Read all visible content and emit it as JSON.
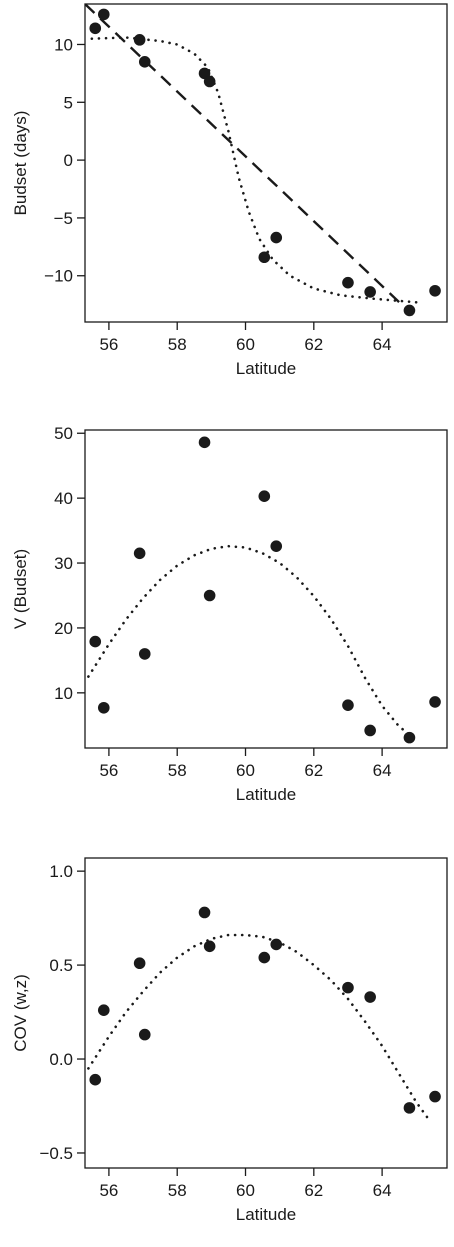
{
  "chart_data": [
    {
      "type": "scatter",
      "xlabel": "Latitude",
      "ylabel": "Budset (days)",
      "xlim": [
        55.3,
        65.9
      ],
      "ylim": [
        -14,
        13.5
      ],
      "xticks": [
        56,
        58,
        60,
        62,
        64
      ],
      "yticks": [
        -10,
        -5,
        0,
        5,
        10
      ],
      "xtick_labels": [
        "56",
        "58",
        "60",
        "62",
        "64"
      ],
      "ytick_labels": [
        "−10",
        "−5",
        "0",
        "5",
        "10"
      ],
      "grid": false,
      "points": [
        {
          "x": 55.6,
          "y": 11.4
        },
        {
          "x": 55.85,
          "y": 12.6
        },
        {
          "x": 56.9,
          "y": 10.4
        },
        {
          "x": 57.05,
          "y": 8.5
        },
        {
          "x": 58.8,
          "y": 7.5
        },
        {
          "x": 58.95,
          "y": 6.8
        },
        {
          "x": 60.55,
          "y": -8.4
        },
        {
          "x": 60.9,
          "y": -6.7
        },
        {
          "x": 63.0,
          "y": -10.6
        },
        {
          "x": 63.65,
          "y": -11.4
        },
        {
          "x": 64.8,
          "y": -13.0
        },
        {
          "x": 65.55,
          "y": -11.3
        }
      ],
      "fits": [
        {
          "style": "dashed",
          "points": [
            [
              55.3,
              13.5
            ],
            [
              64.9,
              -13.4
            ]
          ]
        },
        {
          "style": "dotted",
          "points": [
            [
              55.5,
              10.5
            ],
            [
              56.5,
              10.6
            ],
            [
              57.5,
              10.3
            ],
            [
              58.0,
              10.0
            ],
            [
              58.5,
              9.2
            ],
            [
              58.9,
              8.0
            ],
            [
              59.2,
              5.8
            ],
            [
              59.5,
              2.5
            ],
            [
              59.8,
              -1.5
            ],
            [
              60.1,
              -4.5
            ],
            [
              60.4,
              -6.8
            ],
            [
              60.8,
              -8.6
            ],
            [
              61.3,
              -10.0
            ],
            [
              62.0,
              -11.1
            ],
            [
              62.8,
              -11.7
            ],
            [
              63.8,
              -12.0
            ],
            [
              65.0,
              -12.3
            ]
          ]
        }
      ]
    },
    {
      "type": "scatter",
      "xlabel": "Latitude",
      "ylabel": "V (Budset)",
      "xlim": [
        55.3,
        65.9
      ],
      "ylim": [
        1.5,
        50.5
      ],
      "xticks": [
        56,
        58,
        60,
        62,
        64
      ],
      "yticks": [
        10,
        20,
        30,
        40,
        50
      ],
      "xtick_labels": [
        "56",
        "58",
        "60",
        "62",
        "64"
      ],
      "ytick_labels": [
        "10",
        "20",
        "30",
        "40",
        "50"
      ],
      "grid": false,
      "points": [
        {
          "x": 55.6,
          "y": 17.9
        },
        {
          "x": 55.85,
          "y": 7.7
        },
        {
          "x": 56.9,
          "y": 31.5
        },
        {
          "x": 57.05,
          "y": 16.0
        },
        {
          "x": 58.8,
          "y": 48.6
        },
        {
          "x": 58.95,
          "y": 25.0
        },
        {
          "x": 60.55,
          "y": 40.3
        },
        {
          "x": 60.9,
          "y": 32.6
        },
        {
          "x": 63.0,
          "y": 8.1
        },
        {
          "x": 63.65,
          "y": 4.2
        },
        {
          "x": 64.8,
          "y": 3.1
        },
        {
          "x": 65.55,
          "y": 8.6
        }
      ],
      "fits": [
        {
          "style": "dotted",
          "points": [
            [
              55.4,
              12.5
            ],
            [
              56.0,
              17.5
            ],
            [
              56.5,
              21.3
            ],
            [
              57.0,
              24.6
            ],
            [
              57.5,
              27.4
            ],
            [
              58.0,
              29.6
            ],
            [
              58.5,
              31.2
            ],
            [
              59.0,
              32.2
            ],
            [
              59.5,
              32.6
            ],
            [
              60.0,
              32.4
            ],
            [
              60.5,
              31.5
            ],
            [
              61.0,
              30.0
            ],
            [
              61.5,
              27.8
            ],
            [
              62.0,
              24.9
            ],
            [
              62.5,
              21.4
            ],
            [
              63.0,
              17.2
            ],
            [
              63.5,
              12.3
            ],
            [
              64.0,
              8.0
            ],
            [
              64.5,
              4.8
            ],
            [
              64.8,
              3.6
            ]
          ]
        }
      ]
    },
    {
      "type": "scatter",
      "xlabel": "Latitude",
      "ylabel": "COV (w,z)",
      "xlim": [
        55.3,
        65.9
      ],
      "ylim": [
        -0.58,
        1.07
      ],
      "xticks": [
        56,
        58,
        60,
        62,
        64
      ],
      "yticks": [
        -0.5,
        0.0,
        0.5,
        1.0
      ],
      "xtick_labels": [
        "56",
        "58",
        "60",
        "62",
        "64"
      ],
      "ytick_labels": [
        "−0.5",
        "0.0",
        "0.5",
        "1.0"
      ],
      "grid": false,
      "points": [
        {
          "x": 55.6,
          "y": -0.11
        },
        {
          "x": 55.85,
          "y": 0.26
        },
        {
          "x": 56.9,
          "y": 0.51
        },
        {
          "x": 57.05,
          "y": 0.13
        },
        {
          "x": 58.8,
          "y": 0.78
        },
        {
          "x": 58.95,
          "y": 0.6
        },
        {
          "x": 60.55,
          "y": 0.54
        },
        {
          "x": 60.9,
          "y": 0.61
        },
        {
          "x": 63.0,
          "y": 0.38
        },
        {
          "x": 63.65,
          "y": 0.33
        },
        {
          "x": 64.8,
          "y": -0.26
        },
        {
          "x": 65.55,
          "y": -0.2
        }
      ],
      "fits": [
        {
          "style": "dotted",
          "points": [
            [
              55.4,
              -0.05
            ],
            [
              56.0,
              0.12
            ],
            [
              56.5,
              0.25
            ],
            [
              57.0,
              0.36
            ],
            [
              57.5,
              0.46
            ],
            [
              58.0,
              0.54
            ],
            [
              58.5,
              0.6
            ],
            [
              59.0,
              0.64
            ],
            [
              59.5,
              0.66
            ],
            [
              60.0,
              0.66
            ],
            [
              60.5,
              0.65
            ],
            [
              61.0,
              0.62
            ],
            [
              61.5,
              0.57
            ],
            [
              62.0,
              0.5
            ],
            [
              62.5,
              0.42
            ],
            [
              63.0,
              0.32
            ],
            [
              63.5,
              0.2
            ],
            [
              64.0,
              0.07
            ],
            [
              64.5,
              -0.08
            ],
            [
              65.0,
              -0.23
            ],
            [
              65.4,
              -0.33
            ]
          ]
        }
      ]
    }
  ]
}
